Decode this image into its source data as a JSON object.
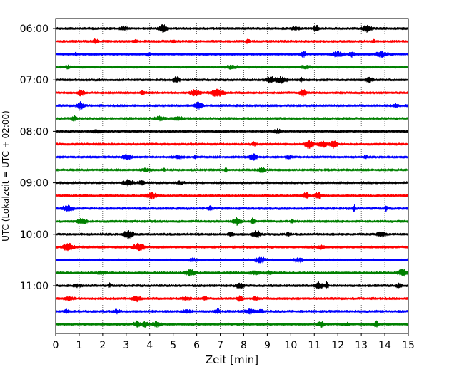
{
  "chart_data": {
    "type": "line",
    "title": "",
    "xlabel": "Zeit  [min]",
    "ylabel": "UTC (Lokalzeit = UTC + 02:00)",
    "x_ticks": [
      0,
      1,
      2,
      3,
      4,
      5,
      6,
      7,
      8,
      9,
      10,
      11,
      12,
      13,
      14,
      15
    ],
    "xlim": [
      0,
      15
    ],
    "y_tick_labels": [
      "06:00",
      "07:00",
      "08:00",
      "09:00",
      "10:00",
      "11:00"
    ],
    "grid_x": true,
    "grid_style": "dotted",
    "trace_colors": [
      "#000000",
      "#ff0000",
      "#0000ff",
      "#008000"
    ],
    "traces": [
      {
        "start": "06:00",
        "color": "#000000"
      },
      {
        "start": "06:15",
        "color": "#ff0000"
      },
      {
        "start": "06:30",
        "color": "#0000ff"
      },
      {
        "start": "06:45",
        "color": "#008000"
      },
      {
        "start": "07:00",
        "color": "#000000"
      },
      {
        "start": "07:15",
        "color": "#ff0000"
      },
      {
        "start": "07:30",
        "color": "#0000ff"
      },
      {
        "start": "07:45",
        "color": "#008000"
      },
      {
        "start": "08:00",
        "color": "#000000"
      },
      {
        "start": "08:15",
        "color": "#ff0000"
      },
      {
        "start": "08:30",
        "color": "#0000ff"
      },
      {
        "start": "08:45",
        "color": "#008000"
      },
      {
        "start": "09:00",
        "color": "#000000"
      },
      {
        "start": "09:15",
        "color": "#ff0000"
      },
      {
        "start": "09:30",
        "color": "#0000ff"
      },
      {
        "start": "09:45",
        "color": "#008000"
      },
      {
        "start": "10:00",
        "color": "#000000"
      },
      {
        "start": "10:15",
        "color": "#ff0000"
      },
      {
        "start": "10:30",
        "color": "#0000ff"
      },
      {
        "start": "10:45",
        "color": "#008000"
      },
      {
        "start": "11:00",
        "color": "#000000"
      },
      {
        "start": "11:15",
        "color": "#ff0000"
      },
      {
        "start": "11:30",
        "color": "#0000ff"
      },
      {
        "start": "11:45",
        "color": "#008000"
      }
    ]
  }
}
